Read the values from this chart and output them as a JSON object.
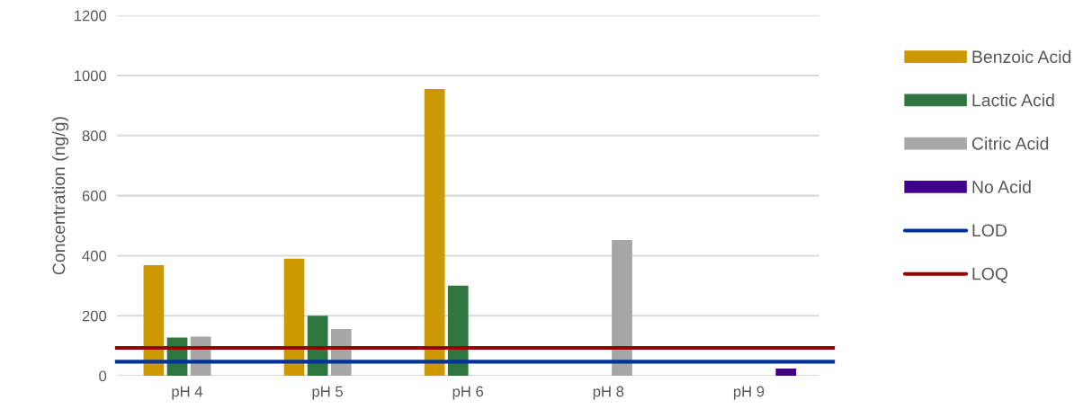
{
  "chart_data": {
    "type": "bar",
    "ylabel": "Concentration (ng/g)",
    "categories": [
      "pH 4",
      "pH 5",
      "pH 6",
      "pH 8",
      "pH 9"
    ],
    "series": [
      {
        "name": "Benzoic Acid",
        "color": "#cc9900",
        "values": [
          368,
          390,
          955,
          null,
          null
        ]
      },
      {
        "name": "Lactic Acid",
        "color": "#2e7540",
        "values": [
          127,
          200,
          300,
          null,
          null
        ]
      },
      {
        "name": "Citric Acid",
        "color": "#a6a6a6",
        "values": [
          130,
          156,
          null,
          452,
          null
        ]
      },
      {
        "name": "No Acid",
        "color": "#3f008e",
        "values": [
          null,
          null,
          null,
          null,
          24
        ]
      }
    ],
    "ref_lines": [
      {
        "axis": "y",
        "value": 47,
        "label": "LOD",
        "color": "#003399"
      },
      {
        "axis": "y",
        "value": 93,
        "label": "LOQ",
        "color": "#990000"
      }
    ],
    "ylim": [
      0,
      1200
    ],
    "yticks": [
      0,
      200,
      400,
      600,
      800,
      1000,
      1200
    ],
    "grid": "y",
    "legend": "right"
  }
}
